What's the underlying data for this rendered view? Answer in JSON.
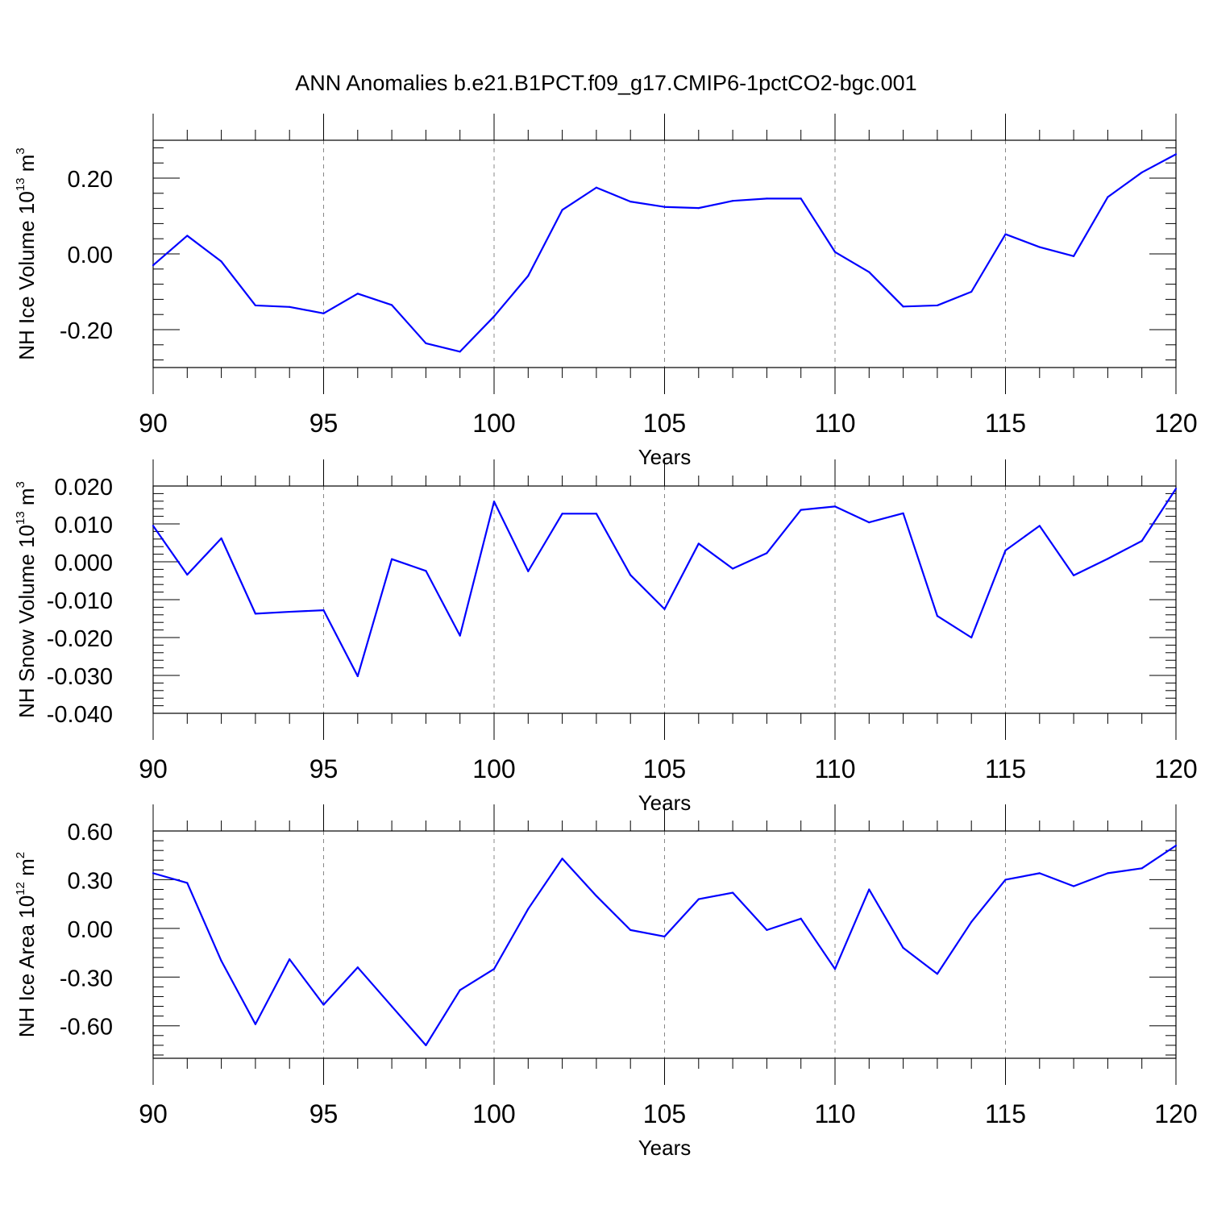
{
  "chart_data": {
    "type": "line",
    "title": "ANN Anomalies b.e21.B1PCT.f09_g17.CMIP6-1pctCO2-bgc.001",
    "xlabel": "Years",
    "xlim": [
      90,
      120
    ],
    "x_ticks": [
      "90",
      "95",
      "100",
      "105",
      "110",
      "115",
      "120"
    ],
    "grid": "vertical-dashed-at-major-x",
    "line_color": "#0000ff",
    "panels": [
      {
        "name": "ice-volume",
        "ylabel_main": "NH Ice Volume 10",
        "ylabel_exp": "13",
        "ylabel_unit": " m",
        "ylabel_unit_exp": "3",
        "ylim": [
          -0.3,
          0.3
        ],
        "y_ticks": [
          {
            "value": 0.2,
            "label": "0.20"
          },
          {
            "value": 0.0,
            "label": "0.00"
          },
          {
            "value": -0.2,
            "label": "-0.20"
          }
        ],
        "x": [
          90,
          91,
          92,
          93,
          94,
          95,
          96,
          97,
          98,
          99,
          100,
          101,
          102,
          103,
          104,
          105,
          106,
          107,
          108,
          109,
          110,
          111,
          112,
          113,
          114,
          115,
          116,
          117,
          118,
          119,
          120
        ],
        "values": [
          -0.03,
          0.048,
          -0.02,
          -0.136,
          -0.14,
          -0.157,
          -0.105,
          -0.135,
          -0.236,
          -0.258,
          -0.165,
          -0.058,
          0.116,
          0.175,
          0.138,
          0.124,
          0.121,
          0.14,
          0.146,
          0.146,
          0.005,
          -0.048,
          -0.139,
          -0.136,
          -0.1,
          0.052,
          0.018,
          -0.006,
          0.15,
          0.215,
          0.263
        ]
      },
      {
        "name": "snow-volume",
        "ylabel_main": "NH Snow Volume 10",
        "ylabel_exp": "13",
        "ylabel_unit": " m",
        "ylabel_unit_exp": "3",
        "ylim": [
          -0.04,
          0.02
        ],
        "y_ticks": [
          {
            "value": 0.02,
            "label": "0.020"
          },
          {
            "value": 0.01,
            "label": "0.010"
          },
          {
            "value": 0.0,
            "label": "0.000"
          },
          {
            "value": -0.01,
            "label": "-0.010"
          },
          {
            "value": -0.02,
            "label": "-0.020"
          },
          {
            "value": -0.03,
            "label": "-0.030"
          },
          {
            "value": -0.04,
            "label": "-0.040"
          }
        ],
        "x": [
          90,
          91,
          92,
          93,
          94,
          95,
          96,
          97,
          98,
          99,
          100,
          101,
          102,
          103,
          104,
          105,
          106,
          107,
          108,
          109,
          110,
          111,
          112,
          113,
          114,
          115,
          116,
          117,
          118,
          119,
          120
        ],
        "values": [
          0.0095,
          -0.0034,
          0.0062,
          -0.0137,
          -0.0132,
          -0.0128,
          -0.0302,
          0.0007,
          -0.0024,
          -0.0195,
          0.0159,
          -0.0025,
          0.0127,
          0.0127,
          -0.0035,
          -0.0125,
          0.0048,
          -0.0018,
          0.0023,
          0.0137,
          0.0146,
          0.0104,
          0.0128,
          -0.0143,
          -0.02,
          0.003,
          0.0095,
          -0.0036,
          0.0008,
          0.0055,
          0.0193
        ]
      },
      {
        "name": "ice-area",
        "ylabel_main": "NH Ice Area 10",
        "ylabel_exp": "12",
        "ylabel_unit": " m",
        "ylabel_unit_exp": "2",
        "ylim": [
          -0.8,
          0.6
        ],
        "y_ticks": [
          {
            "value": 0.6,
            "label": "0.60"
          },
          {
            "value": 0.3,
            "label": "0.30"
          },
          {
            "value": 0.0,
            "label": "0.00"
          },
          {
            "value": -0.3,
            "label": "-0.30"
          },
          {
            "value": -0.6,
            "label": "-0.60"
          }
        ],
        "x": [
          90,
          91,
          92,
          93,
          94,
          95,
          96,
          97,
          98,
          99,
          100,
          101,
          102,
          103,
          104,
          105,
          106,
          107,
          108,
          109,
          110,
          111,
          112,
          113,
          114,
          115,
          116,
          117,
          118,
          119,
          120
        ],
        "values": [
          0.34,
          0.28,
          -0.2,
          -0.59,
          -0.19,
          -0.47,
          -0.24,
          -0.48,
          -0.72,
          -0.38,
          -0.25,
          0.12,
          0.43,
          0.2,
          -0.01,
          -0.05,
          0.18,
          0.22,
          -0.01,
          0.06,
          -0.25,
          0.24,
          -0.12,
          -0.28,
          0.04,
          0.3,
          0.34,
          0.26,
          0.34,
          0.37,
          0.51
        ]
      }
    ]
  }
}
